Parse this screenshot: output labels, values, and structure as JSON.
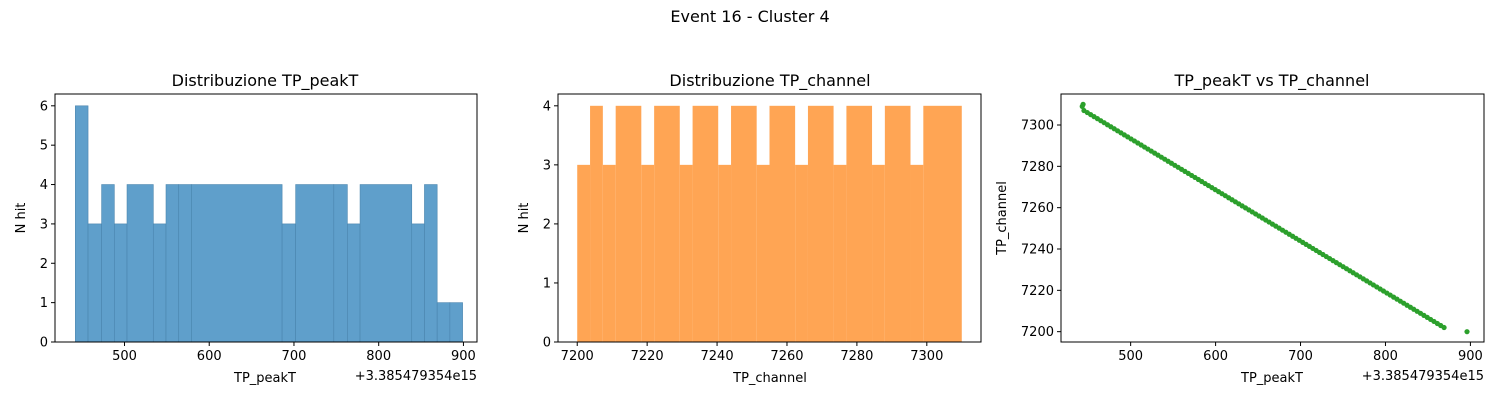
{
  "figure_title": "Event 16 - Cluster 4",
  "colors": {
    "hist1": "#5f9fcb",
    "hist1_edge": "#4a85ae",
    "hist2": "#ffa554",
    "scatter": "#2ca02c",
    "axis": "#000000"
  },
  "chart_data": [
    {
      "type": "bar",
      "title": "Distribuzione TP_peakT",
      "xlabel": "TP_peakT",
      "ylabel": "N hit",
      "x_offset_label": "+3.385479354e15",
      "xlim": [
        418,
        916
      ],
      "ylim": [
        0,
        6.3
      ],
      "xticks": [
        500,
        600,
        700,
        800,
        900
      ],
      "yticks": [
        0,
        1,
        2,
        3,
        4,
        5,
        6
      ],
      "bins": [
        {
          "x0": 442,
          "x1": 457,
          "count": 6
        },
        {
          "x0": 457,
          "x1": 473,
          "count": 3
        },
        {
          "x0": 473,
          "x1": 488,
          "count": 4
        },
        {
          "x0": 488,
          "x1": 503,
          "count": 3
        },
        {
          "x0": 503,
          "x1": 534,
          "count": 4
        },
        {
          "x0": 534,
          "x1": 549,
          "count": 3
        },
        {
          "x0": 549,
          "x1": 564,
          "count": 4
        },
        {
          "x0": 564,
          "x1": 579,
          "count": 4
        },
        {
          "x0": 579,
          "x1": 686,
          "count": 4
        },
        {
          "x0": 686,
          "x1": 702,
          "count": 3
        },
        {
          "x0": 702,
          "x1": 747,
          "count": 4
        },
        {
          "x0": 747,
          "x1": 763,
          "count": 4
        },
        {
          "x0": 763,
          "x1": 778,
          "count": 3
        },
        {
          "x0": 778,
          "x1": 839,
          "count": 4
        },
        {
          "x0": 839,
          "x1": 854,
          "count": 3
        },
        {
          "x0": 854,
          "x1": 869,
          "count": 4
        },
        {
          "x0": 869,
          "x1": 884,
          "count": 1
        },
        {
          "x0": 884,
          "x1": 899,
          "count": 1
        }
      ]
    },
    {
      "type": "bar",
      "title": "Distribuzione TP_channel",
      "xlabel": "TP_channel",
      "ylabel": "N hit",
      "xlim": [
        7194.5,
        7315.5
      ],
      "ylim": [
        0,
        4.2
      ],
      "xticks": [
        7200,
        7220,
        7240,
        7260,
        7280,
        7300
      ],
      "yticks": [
        0,
        1,
        2,
        3,
        4
      ],
      "bins": [
        {
          "x0": 7200.0,
          "x1": 7203.67,
          "count": 3
        },
        {
          "x0": 7203.67,
          "x1": 7207.33,
          "count": 4
        },
        {
          "x0": 7207.33,
          "x1": 7211.0,
          "count": 3
        },
        {
          "x0": 7211.0,
          "x1": 7218.33,
          "count": 4
        },
        {
          "x0": 7218.33,
          "x1": 7222.0,
          "count": 3
        },
        {
          "x0": 7222.0,
          "x1": 7229.33,
          "count": 4
        },
        {
          "x0": 7229.33,
          "x1": 7233.0,
          "count": 3
        },
        {
          "x0": 7233.0,
          "x1": 7240.33,
          "count": 4
        },
        {
          "x0": 7240.33,
          "x1": 7244.0,
          "count": 3
        },
        {
          "x0": 7244.0,
          "x1": 7251.33,
          "count": 4
        },
        {
          "x0": 7251.33,
          "x1": 7255.0,
          "count": 3
        },
        {
          "x0": 7255.0,
          "x1": 7262.33,
          "count": 4
        },
        {
          "x0": 7262.33,
          "x1": 7266.0,
          "count": 3
        },
        {
          "x0": 7266.0,
          "x1": 7273.33,
          "count": 4
        },
        {
          "x0": 7273.33,
          "x1": 7277.0,
          "count": 3
        },
        {
          "x0": 7277.0,
          "x1": 7284.33,
          "count": 4
        },
        {
          "x0": 7284.33,
          "x1": 7288.0,
          "count": 3
        },
        {
          "x0": 7288.0,
          "x1": 7295.33,
          "count": 4
        },
        {
          "x0": 7295.33,
          "x1": 7299.0,
          "count": 3
        },
        {
          "x0": 7299.0,
          "x1": 7310.0,
          "count": 4
        }
      ]
    },
    {
      "type": "scatter",
      "title": "TP_peakT vs TP_channel",
      "xlabel": "TP_peakT",
      "ylabel": "TP_channel",
      "x_offset_label": "+3.385479354e15",
      "xlim": [
        418,
        916
      ],
      "ylim": [
        7195,
        7315
      ],
      "xticks": [
        500,
        600,
        700,
        800,
        900
      ],
      "yticks": [
        7200,
        7220,
        7240,
        7260,
        7280,
        7300
      ],
      "series": {
        "x_start": 445,
        "x_end": 869,
        "y_start": 7307,
        "y_end": 7202,
        "n_points": 108,
        "extra_points": [
          [
            443,
            7309
          ],
          [
            444,
            7310
          ],
          [
            896,
            7200
          ]
        ]
      }
    }
  ]
}
